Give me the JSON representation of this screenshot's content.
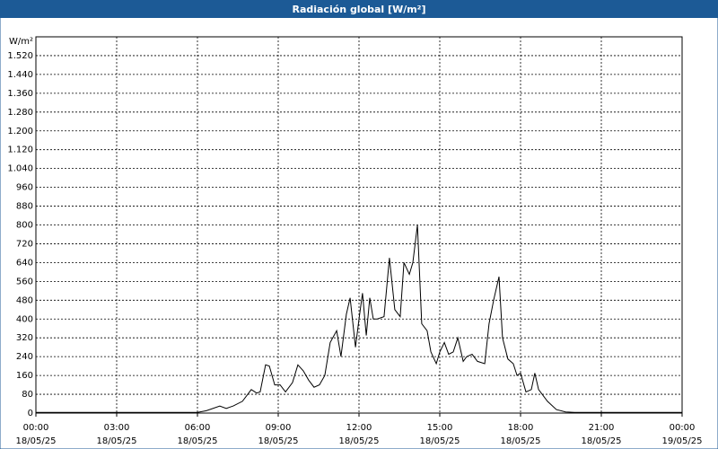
{
  "chart_data": {
    "type": "line",
    "title": "Radiación global [W/m²]",
    "y_label": "W/m²",
    "series": [
      {
        "name": "Radiación global",
        "color": "#000000",
        "x": [
          0,
          6.0,
          6.33,
          6.83,
          7.07,
          7.33,
          7.67,
          8.0,
          8.2,
          8.33,
          8.53,
          8.67,
          8.87,
          9.07,
          9.27,
          9.53,
          9.73,
          9.93,
          10.13,
          10.33,
          10.53,
          10.73,
          10.93,
          11.17,
          11.33,
          11.53,
          11.67,
          11.87,
          12.0,
          12.13,
          12.27,
          12.4,
          12.53,
          12.67,
          12.93,
          13.13,
          13.33,
          13.53,
          13.67,
          13.87,
          14.0,
          14.17,
          14.33,
          14.53,
          14.67,
          14.87,
          15.0,
          15.17,
          15.33,
          15.5,
          15.67,
          15.87,
          16.0,
          16.2,
          16.4,
          16.67,
          16.83,
          17.0,
          17.2,
          17.33,
          17.53,
          17.73,
          17.87,
          18.0,
          18.2,
          18.4,
          18.53,
          18.67,
          19.0,
          19.33,
          19.67,
          20.0,
          24.0
        ],
        "values": [
          3,
          3,
          10,
          30,
          20,
          30,
          50,
          100,
          85,
          90,
          205,
          200,
          120,
          120,
          90,
          130,
          205,
          180,
          140,
          110,
          120,
          160,
          300,
          350,
          240,
          420,
          490,
          280,
          400,
          510,
          330,
          490,
          400,
          400,
          410,
          660,
          440,
          410,
          640,
          590,
          640,
          800,
          380,
          350,
          260,
          210,
          260,
          300,
          250,
          260,
          320,
          220,
          240,
          250,
          220,
          210,
          380,
          480,
          580,
          320,
          230,
          210,
          160,
          170,
          90,
          100,
          170,
          100,
          50,
          15,
          5,
          3,
          3
        ]
      }
    ],
    "xlim": [
      0,
      24
    ],
    "xticks": [
      {
        "value": 0,
        "label": "00:00",
        "date": "18/05/25"
      },
      {
        "value": 3,
        "label": "03:00",
        "date": "18/05/25"
      },
      {
        "value": 6,
        "label": "06:00",
        "date": "18/05/25"
      },
      {
        "value": 9,
        "label": "09:00",
        "date": "18/05/25"
      },
      {
        "value": 12,
        "label": "12:00",
        "date": "18/05/25"
      },
      {
        "value": 15,
        "label": "15:00",
        "date": "18/05/25"
      },
      {
        "value": 18,
        "label": "18:00",
        "date": "18/05/25"
      },
      {
        "value": 21,
        "label": "21:00",
        "date": "18/05/25"
      },
      {
        "value": 24,
        "label": "00:00",
        "date": "19/05/25"
      }
    ],
    "ylim": [
      0,
      1600
    ],
    "yticks": [
      0,
      80,
      160,
      240,
      320,
      400,
      480,
      560,
      640,
      720,
      800,
      880,
      960,
      {
        "value": 1040,
        "label": "1.040"
      },
      {
        "value": 1120,
        "label": "1.120"
      },
      {
        "value": 1200,
        "label": "1.200"
      },
      {
        "value": 1280,
        "label": "1.280"
      },
      {
        "value": 1360,
        "label": "1.360"
      },
      {
        "value": 1440,
        "label": "1.440"
      },
      {
        "value": 1520,
        "label": "1.520"
      }
    ],
    "grid": true
  }
}
